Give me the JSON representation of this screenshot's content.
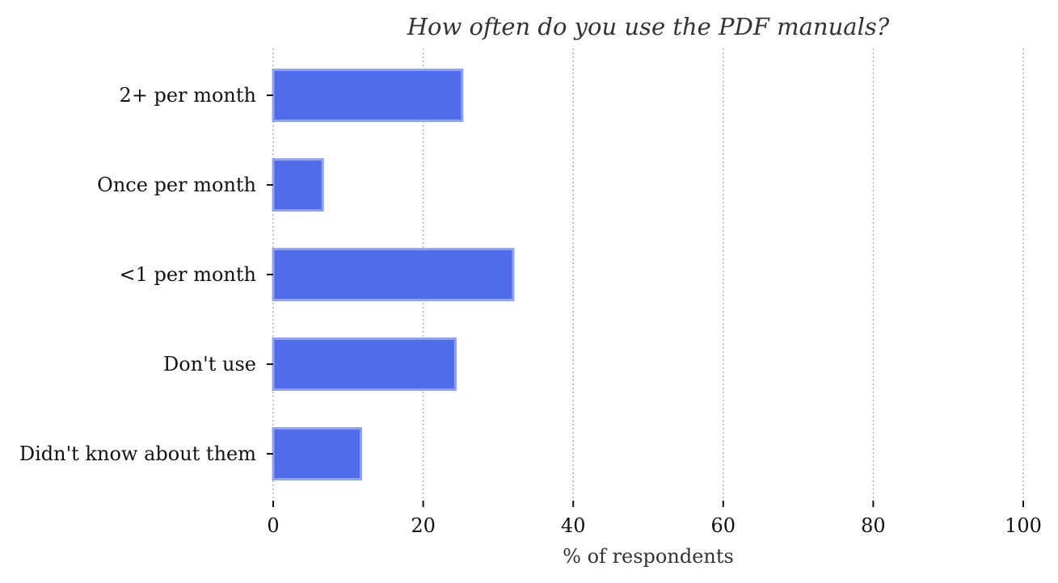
{
  "chart_data": {
    "type": "bar",
    "orientation": "horizontal",
    "title": "How often do you use the PDF manuals?",
    "xlabel": "% of respondents",
    "ylabel": "",
    "categories": [
      "2+ per month",
      "Once per month",
      "<1 per month",
      "Don't use",
      "Didn't know about them"
    ],
    "values": [
      25.2,
      6.6,
      32.0,
      24.3,
      11.7
    ],
    "xlim": [
      0,
      100
    ],
    "xticks": [
      0,
      20,
      40,
      60,
      80,
      100
    ],
    "xtick_labels": [
      "0",
      "20",
      "40",
      "60",
      "80",
      "100"
    ],
    "grid": "vertical dotted",
    "colors": {
      "bar_fill": "#516ce8",
      "bar_edge": "#8ea2f5",
      "grid": "#b0b0b0",
      "text": "#111111",
      "title": "#333333"
    }
  }
}
